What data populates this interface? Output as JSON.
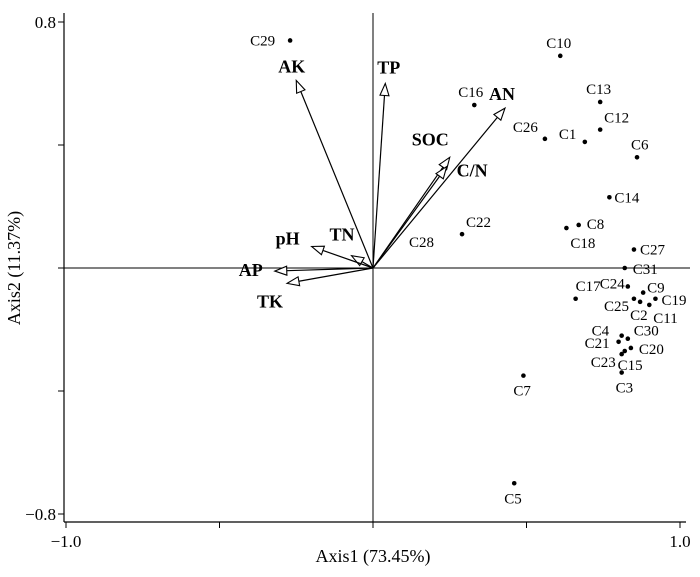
{
  "chart_data": {
    "type": "scatter",
    "xlabel": "Axis1 (73.45%)",
    "ylabel": "Axis2 (11.37%)",
    "xlim": [
      -1.0,
      1.0
    ],
    "ylim": [
      -0.8,
      0.8
    ],
    "x_tick_labels": [
      {
        "value": -1.0,
        "label": "−1.0"
      },
      {
        "value": 1.0,
        "label": "1.0"
      }
    ],
    "y_tick_labels": [
      {
        "value": 0.8,
        "label": "0.8"
      },
      {
        "value": -0.8,
        "label": "−0.8"
      }
    ],
    "points": [
      {
        "label": "C29",
        "x": -0.27,
        "y": 0.74
      },
      {
        "label": "C10",
        "x": 0.61,
        "y": 0.69
      },
      {
        "label": "C13",
        "x": 0.74,
        "y": 0.54
      },
      {
        "label": "C12",
        "x": 0.74,
        "y": 0.45
      },
      {
        "label": "C16",
        "x": 0.33,
        "y": 0.53
      },
      {
        "label": "C26",
        "x": 0.56,
        "y": 0.42
      },
      {
        "label": "C1",
        "x": 0.69,
        "y": 0.41
      },
      {
        "label": "C6",
        "x": 0.86,
        "y": 0.36
      },
      {
        "label": "C14",
        "x": 0.77,
        "y": 0.23
      },
      {
        "label": "C8",
        "x": 0.67,
        "y": 0.14
      },
      {
        "label": "C18",
        "x": 0.63,
        "y": 0.13
      },
      {
        "label": "C22",
        "x": 0.29,
        "y": 0.11
      },
      {
        "label": "C27",
        "x": 0.85,
        "y": 0.06
      },
      {
        "label": "C31",
        "x": 0.82,
        "y": 0.0
      },
      {
        "label": "C17",
        "x": 0.66,
        "y": -0.1
      },
      {
        "label": "C24",
        "x": 0.83,
        "y": -0.06
      },
      {
        "label": "C9",
        "x": 0.88,
        "y": -0.08
      },
      {
        "label": "C19",
        "x": 0.92,
        "y": -0.1
      },
      {
        "label": "C25",
        "x": 0.85,
        "y": -0.1
      },
      {
        "label": "C2",
        "x": 0.87,
        "y": -0.11
      },
      {
        "label": "C11",
        "x": 0.9,
        "y": -0.12
      },
      {
        "label": "C4",
        "x": 0.81,
        "y": -0.22
      },
      {
        "label": "C30",
        "x": 0.83,
        "y": -0.23
      },
      {
        "label": "C21",
        "x": 0.8,
        "y": -0.24
      },
      {
        "label": "C20",
        "x": 0.84,
        "y": -0.26
      },
      {
        "label": "C23",
        "x": 0.82,
        "y": -0.27
      },
      {
        "label": "C15",
        "x": 0.81,
        "y": -0.28
      },
      {
        "label": "C3",
        "x": 0.81,
        "y": -0.34
      },
      {
        "label": "C7",
        "x": 0.49,
        "y": -0.35
      },
      {
        "label": "C5",
        "x": 0.46,
        "y": -0.7
      },
      {
        "label": "C28",
        "x": 0.2,
        "y": 0.06
      }
    ],
    "vectors": [
      {
        "label": "AK",
        "x": -0.25,
        "y": 0.61
      },
      {
        "label": "TP",
        "x": 0.04,
        "y": 0.6
      },
      {
        "label": "AN",
        "x": 0.43,
        "y": 0.52
      },
      {
        "label": "SOC",
        "x": 0.25,
        "y": 0.36
      },
      {
        "label": "C/N",
        "x": 0.24,
        "y": 0.33
      },
      {
        "label": "TN",
        "x": -0.07,
        "y": 0.04
      },
      {
        "label": "pH",
        "x": -0.2,
        "y": 0.07
      },
      {
        "label": "AP",
        "x": -0.32,
        "y": -0.01
      },
      {
        "label": "TK",
        "x": -0.28,
        "y": -0.05
      }
    ]
  }
}
